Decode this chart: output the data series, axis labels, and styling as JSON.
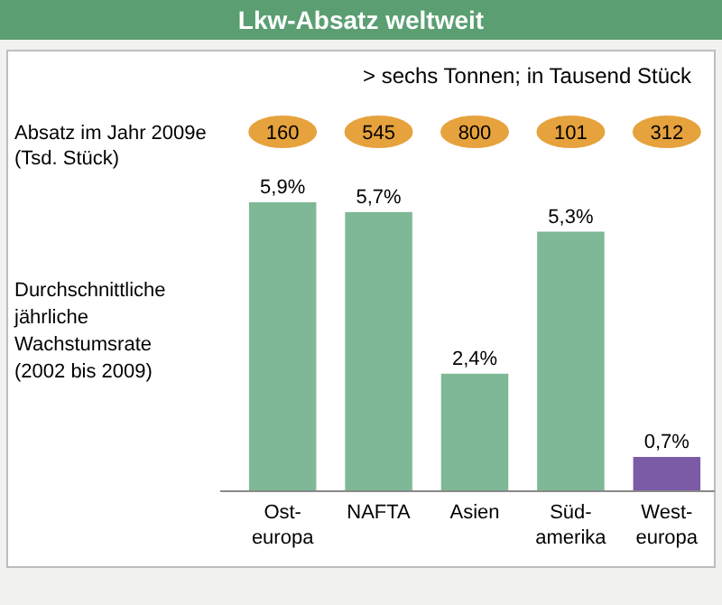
{
  "chart_data": {
    "type": "bar",
    "title": "Lkw-Absatz weltweit",
    "subtitle": "> sechs Tonnen; in Tausend Stück",
    "ylabel": "Durchschnittliche\njährliche\nWachstumsrate\n(2002 bis 2009)",
    "categories": [
      "Ost-\neuropa",
      "NAFTA",
      "Asien",
      "Süd-\namerika",
      "West-\neuropa"
    ],
    "values": [
      5.9,
      5.7,
      2.4,
      5.3,
      0.7
    ],
    "colors": [
      "#7fb896",
      "#7fb896",
      "#7fb896",
      "#7fb896",
      "#7b5aa6"
    ],
    "value_labels": [
      "5,9%",
      "5,7%",
      "2,4%",
      "5,3%",
      "0,7%"
    ],
    "annotations": [
      "Absatz im Jahr 2009e\n(Tsd. Stück)",
      "160",
      "545",
      "800",
      "101",
      "312"
    ]
  }
}
